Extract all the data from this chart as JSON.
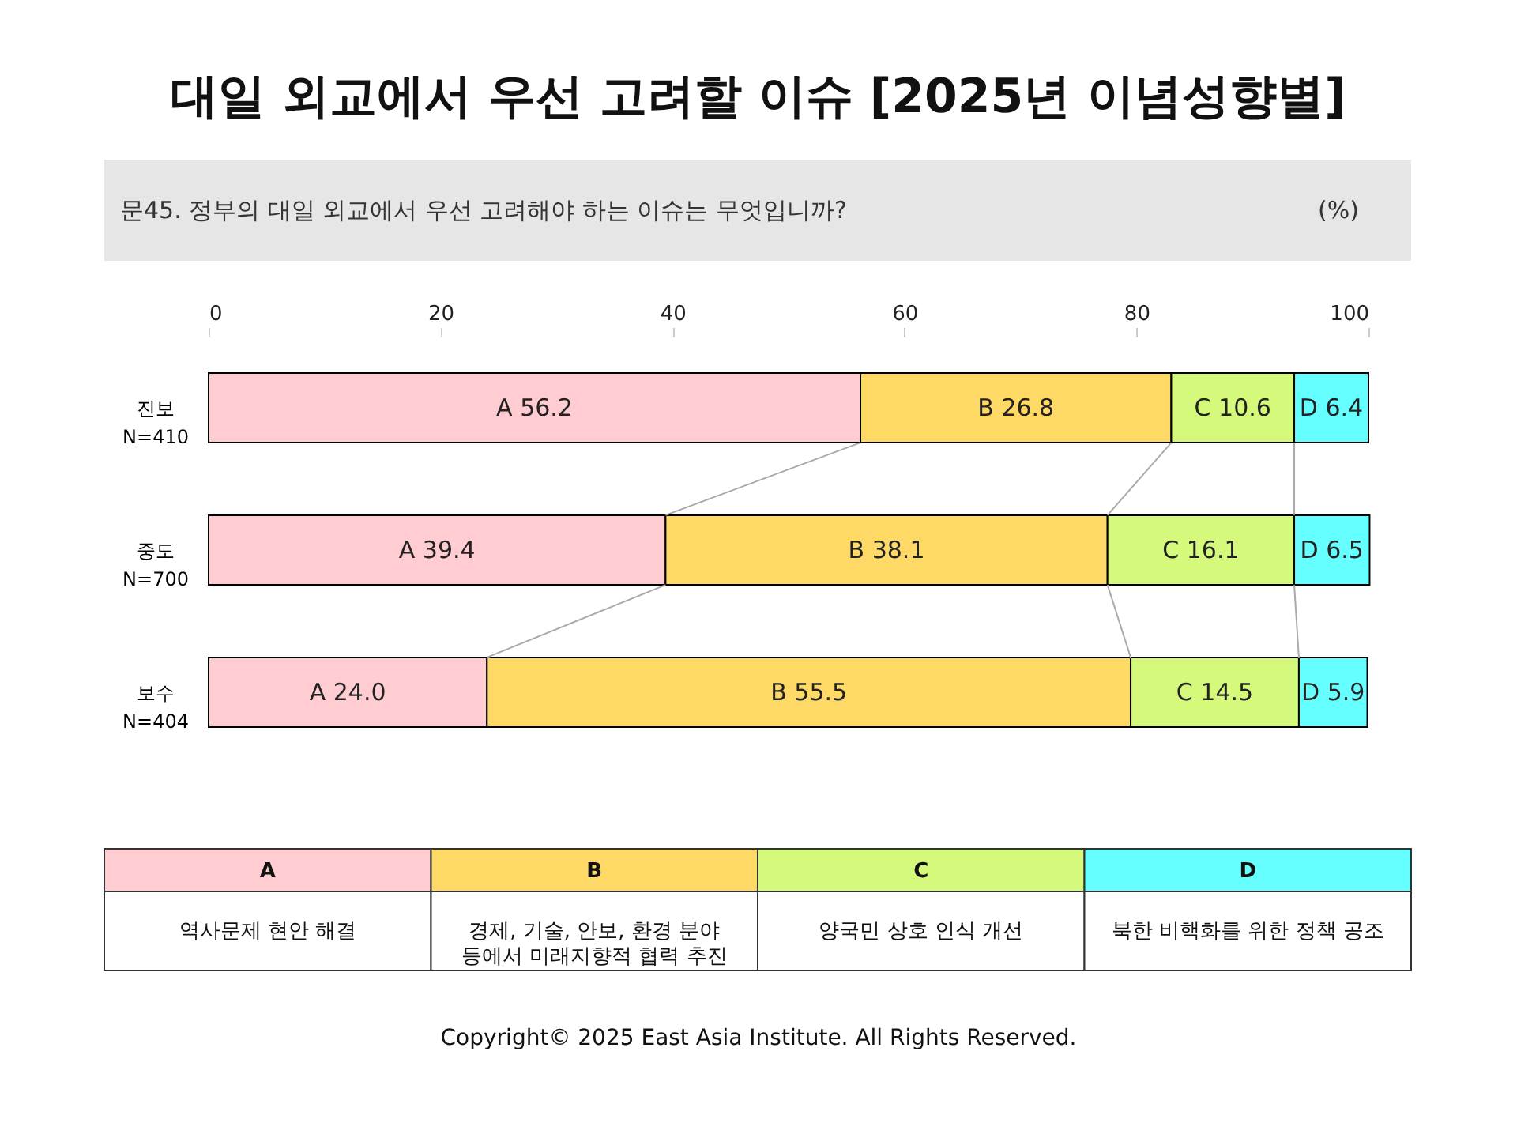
{
  "chart_data": {
    "type": "bar",
    "orientation": "horizontal",
    "stacked": true,
    "title": "대일 외교에서 우선 고려할 이슈 [2025년 이념성향별]",
    "subtitle": "문45. 정부의 대일 외교에서 우선 고려해야 하는 이슈는 무엇입니까?",
    "categories": [
      "진보\nN=410",
      "중도\nN=700",
      "보수\nN=404"
    ],
    "series": [
      {
        "name": "A",
        "color": "#ffccd2",
        "values": [
          56.2,
          39.4,
          24.0
        ],
        "value_labels": [
          "A 56.2",
          "A 39.4",
          "A 24.0"
        ]
      },
      {
        "name": "B",
        "color": "#ffd966",
        "values": [
          26.8,
          38.1,
          55.5
        ],
        "value_labels": [
          "B 26.8",
          "B 38.1",
          "B 55.5"
        ]
      },
      {
        "name": "C",
        "color": "#d5f97a",
        "values": [
          10.6,
          16.1,
          14.5
        ],
        "value_labels": [
          "C 10.6",
          "C 16.1",
          "C 14.5"
        ]
      },
      {
        "name": "D",
        "color": "#66ffff",
        "values": [
          6.4,
          6.5,
          5.9
        ],
        "value_labels": [
          "D 6.4",
          "D 6.5",
          "D 5.9"
        ]
      }
    ],
    "xlim": [
      0,
      100
    ],
    "xticks": [
      0,
      20,
      40,
      60,
      80,
      100
    ],
    "grid": false,
    "legend": "bottom",
    "annotations": [
      "(%)",
      "역사문제 현안 해결",
      "경제, 기술, 안보, 환경 분야\n등에서 미래지향적 협력 추진",
      "양국민 상호 인식 개선",
      "북한 비핵화를 위한 정책 공조",
      "Copyright© 2025 East Asia Institute. All Rights Reserved."
    ]
  }
}
